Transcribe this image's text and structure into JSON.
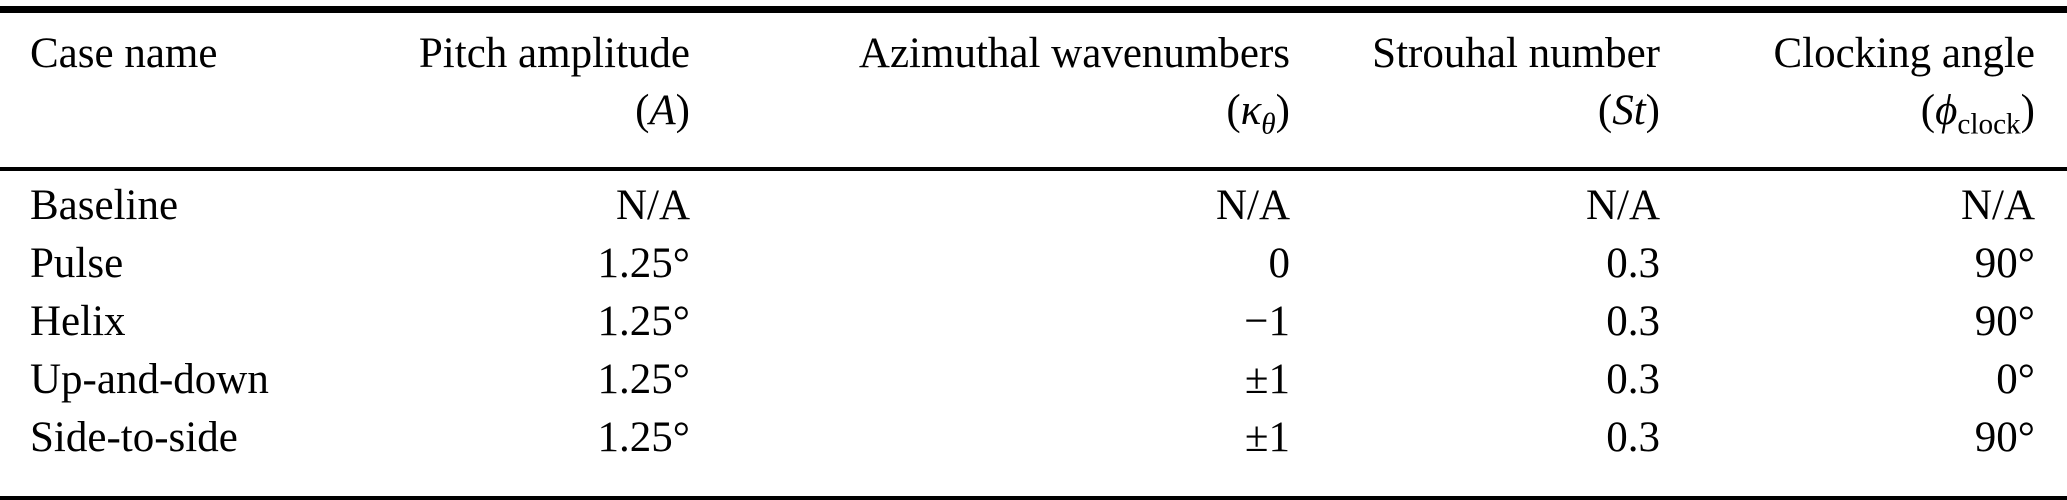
{
  "table": {
    "columns": [
      {
        "label": "Case name",
        "symbol": {
          "open": "",
          "main": "",
          "sub": "",
          "close": ""
        }
      },
      {
        "label": "Pitch amplitude",
        "symbol": {
          "open": "(",
          "main": "A",
          "sub": "",
          "close": ")"
        }
      },
      {
        "label": "Azimuthal wavenumbers",
        "symbol": {
          "open": "(",
          "main": "κ",
          "sub": "θ",
          "close": ")"
        }
      },
      {
        "label": "Strouhal number",
        "symbol": {
          "open": "(",
          "main": "St",
          "sub": "",
          "close": ")"
        }
      },
      {
        "label": "Clocking angle",
        "symbol": {
          "open": "(",
          "main": "ϕ",
          "sub": "clock",
          "close": ")"
        }
      }
    ],
    "rows": [
      {
        "case": "Baseline",
        "pitch": "N/A",
        "wavenumbers": "N/A",
        "strouhal": "N/A",
        "clocking": "N/A"
      },
      {
        "case": "Pulse",
        "pitch": "1.25°",
        "wavenumbers": "0",
        "strouhal": "0.3",
        "clocking": "90°"
      },
      {
        "case": "Helix",
        "pitch": "1.25°",
        "wavenumbers": "−1",
        "strouhal": "0.3",
        "clocking": "90°"
      },
      {
        "case": "Up-and-down",
        "pitch": "1.25°",
        "wavenumbers": "±1",
        "strouhal": "0.3",
        "clocking": "0°"
      },
      {
        "case": "Side-to-side",
        "pitch": "1.25°",
        "wavenumbers": "±1",
        "strouhal": "0.3",
        "clocking": "90°"
      }
    ]
  },
  "colors": {
    "text": "#000000",
    "background": "#ffffff",
    "rule": "#000000"
  }
}
